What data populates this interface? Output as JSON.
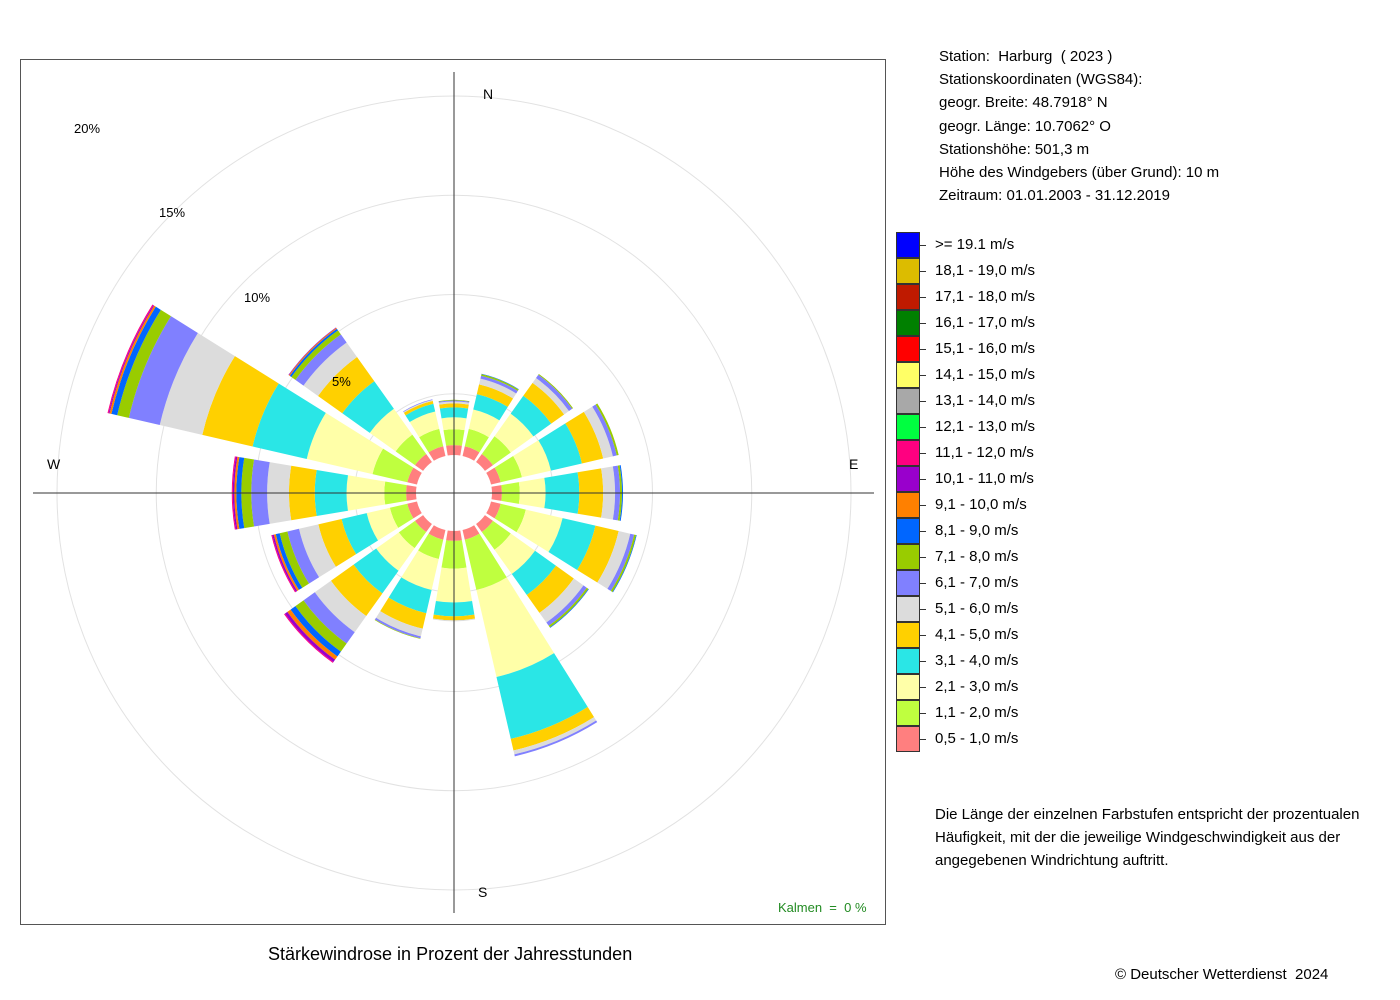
{
  "title": "Stärkewindrose in Prozent der Jahresstunden",
  "calm_text": "Kalmen  =  0 %",
  "copyright": "© Deutscher Wetterdienst  2024",
  "station_info": [
    "Station:  Harburg  ( 2023 )",
    "Stationskoordinaten (WGS84):",
    "geogr. Breite: 48.7918° N",
    "geogr. Länge: 10.7062° O",
    "Stationshöhe: 501,3 m",
    "Höhe des Windgebers (über Grund): 10 m",
    "Zeitraum: 01.01.2003 - 31.12.2019"
  ],
  "note": "Die Länge der einzelnen Farbstufen entspricht der prozentualen Häufigkeit, mit der die jeweilige Windgeschwindigkeit aus der angegebenen Windrichtung auftritt.",
  "chart_data": {
    "type": "wind-rose",
    "directions": [
      "N",
      "NNE",
      "NE",
      "ENE",
      "E",
      "ESE",
      "SE",
      "SSE",
      "S",
      "SSW",
      "SW",
      "WSW",
      "W",
      "WNW",
      "NW",
      "NNW"
    ],
    "direction_angles_deg": [
      0,
      22.5,
      45,
      67.5,
      90,
      112.5,
      135,
      157.5,
      180,
      202.5,
      225,
      247.5,
      270,
      292.5,
      315,
      337.5
    ],
    "compass_labels": [
      "N",
      "E",
      "S",
      "W"
    ],
    "rings_percent": [
      5,
      10,
      15,
      20
    ],
    "ring_labels": [
      "5%",
      "10%",
      "15%",
      "20%"
    ],
    "calm_percent": 0,
    "speed_classes": [
      {
        "label": "0,5 - 1,0 m/s",
        "color": "#ff7f7f"
      },
      {
        "label": "1,1 - 2,0 m/s",
        "color": "#bfff3f"
      },
      {
        "label": "2,1 - 3,0 m/s",
        "color": "#ffffa8"
      },
      {
        "label": "3,1 - 4,0 m/s",
        "color": "#2ae6e6"
      },
      {
        "label": "4,1 - 5,0 m/s",
        "color": "#ffd000"
      },
      {
        "label": "5,1 - 6,0 m/s",
        "color": "#dcdcdc"
      },
      {
        "label": "6,1 - 7,0 m/s",
        "color": "#8080ff"
      },
      {
        "label": "7,1 - 8,0 m/s",
        "color": "#99cc00"
      },
      {
        "label": "8,1 - 9,0 m/s",
        "color": "#0066ff"
      },
      {
        "label": "9,1 - 10,0 m/s",
        "color": "#ff8000"
      },
      {
        "label": "10,1 - 11,0 m/s",
        "color": "#9900cc"
      },
      {
        "label": "11,1 - 12,0 m/s",
        "color": "#ff0080"
      },
      {
        "label": "12,1 - 13,0 m/s",
        "color": "#00ff40"
      },
      {
        "label": "13,1 - 14,0 m/s",
        "color": "#a8a8a8"
      },
      {
        "label": "14,1 - 15,0 m/s",
        "color": "#ffff66"
      },
      {
        "label": "15,1 - 16,0 m/s",
        "color": "#ff0000"
      },
      {
        "label": "16,1 - 17,0 m/s",
        "color": "#008000"
      },
      {
        "label": "17,1 - 18,0 m/s",
        "color": "#bf1a00"
      },
      {
        "label": "18,1 - 19,0 m/s",
        "color": "#dcbc00"
      },
      {
        "label": ">= 19.1 m/s",
        "color": "#0000ff"
      }
    ],
    "series": [
      {
        "direction": "N",
        "values": [
          0.5,
          0.8,
          0.6,
          0.5,
          0.2,
          0.1,
          0.05,
          0.03,
          0,
          0,
          0,
          0,
          0,
          0,
          0,
          0,
          0,
          0,
          0,
          0
        ]
      },
      {
        "direction": "NNE",
        "values": [
          0.5,
          0.9,
          1.0,
          0.8,
          0.5,
          0.3,
          0.15,
          0.08,
          0.02,
          0,
          0,
          0,
          0,
          0,
          0,
          0,
          0,
          0,
          0,
          0
        ]
      },
      {
        "direction": "NE",
        "values": [
          0.5,
          1.1,
          1.4,
          1.1,
          0.8,
          0.3,
          0.2,
          0.05,
          0,
          0,
          0,
          0,
          0,
          0,
          0,
          0,
          0,
          0,
          0,
          0
        ]
      },
      {
        "direction": "ENE",
        "values": [
          0.5,
          1.1,
          1.5,
          1.6,
          1.1,
          0.5,
          0.2,
          0.1,
          0,
          0,
          0,
          0,
          0,
          0,
          0,
          0,
          0,
          0,
          0,
          0
        ]
      },
      {
        "direction": "E",
        "values": [
          0.5,
          0.9,
          1.3,
          1.7,
          1.2,
          0.6,
          0.25,
          0.1,
          0.05,
          0,
          0,
          0,
          0,
          0,
          0,
          0,
          0,
          0,
          0,
          0
        ]
      },
      {
        "direction": "ESE",
        "values": [
          0.5,
          1.3,
          1.9,
          1.7,
          1.2,
          0.6,
          0.2,
          0.1,
          0.03,
          0,
          0,
          0,
          0,
          0,
          0,
          0,
          0,
          0,
          0,
          0
        ]
      },
      {
        "direction": "SE",
        "values": [
          0.5,
          1.1,
          1.5,
          1.3,
          1.1,
          0.6,
          0.2,
          0.1,
          0.03,
          0,
          0,
          0,
          0,
          0,
          0,
          0,
          0,
          0,
          0,
          0
        ]
      },
      {
        "direction": "SSE",
        "values": [
          0.5,
          2.6,
          4.5,
          3.2,
          0.6,
          0.2,
          0.1,
          0,
          0,
          0,
          0,
          0,
          0,
          0,
          0,
          0,
          0,
          0,
          0,
          0
        ]
      },
      {
        "direction": "S",
        "values": [
          0.5,
          1.4,
          1.7,
          0.7,
          0.2,
          0.05,
          0,
          0,
          0,
          0,
          0,
          0,
          0,
          0,
          0,
          0,
          0,
          0,
          0,
          0
        ]
      },
      {
        "direction": "SSW",
        "values": [
          0.5,
          1.0,
          1.6,
          1.2,
          0.8,
          0.4,
          0.1,
          0.03,
          0,
          0,
          0,
          0,
          0,
          0,
          0,
          0,
          0,
          0,
          0,
          0
        ]
      },
      {
        "direction": "SW",
        "values": [
          0.5,
          1.0,
          1.4,
          1.4,
          1.4,
          1.0,
          0.7,
          0.5,
          0.3,
          0.2,
          0.15,
          0.05,
          0,
          0,
          0,
          0,
          0,
          0,
          0,
          0
        ]
      },
      {
        "direction": "WSW",
        "values": [
          0.5,
          0.9,
          1.2,
          1.3,
          1.2,
          1.0,
          0.6,
          0.4,
          0.2,
          0.1,
          0.08,
          0.05,
          0,
          0,
          0,
          0,
          0,
          0,
          0,
          0
        ]
      },
      {
        "direction": "W",
        "values": [
          0.5,
          1.1,
          1.9,
          1.6,
          1.3,
          1.1,
          0.8,
          0.5,
          0.25,
          0.1,
          0.08,
          0.05,
          0,
          0,
          0,
          0,
          0,
          0,
          0,
          0
        ]
      },
      {
        "direction": "WNW",
        "values": [
          0.5,
          1.8,
          3.4,
          2.8,
          2.6,
          2.2,
          1.6,
          0.6,
          0.3,
          0.1,
          0.05,
          0.05,
          0,
          0,
          0,
          0,
          0,
          0,
          0,
          0
        ]
      },
      {
        "direction": "NW",
        "values": [
          0.5,
          1.2,
          1.6,
          1.7,
          1.5,
          0.9,
          0.5,
          0.25,
          0.1,
          0.05,
          0.03,
          0,
          0,
          0,
          0,
          0,
          0,
          0,
          0,
          0
        ]
      },
      {
        "direction": "NNW",
        "values": [
          0.5,
          0.9,
          0.9,
          0.4,
          0.15,
          0.05,
          0.03,
          0,
          0,
          0,
          0,
          0,
          0,
          0,
          0,
          0,
          0,
          0,
          0,
          0
        ]
      }
    ]
  }
}
